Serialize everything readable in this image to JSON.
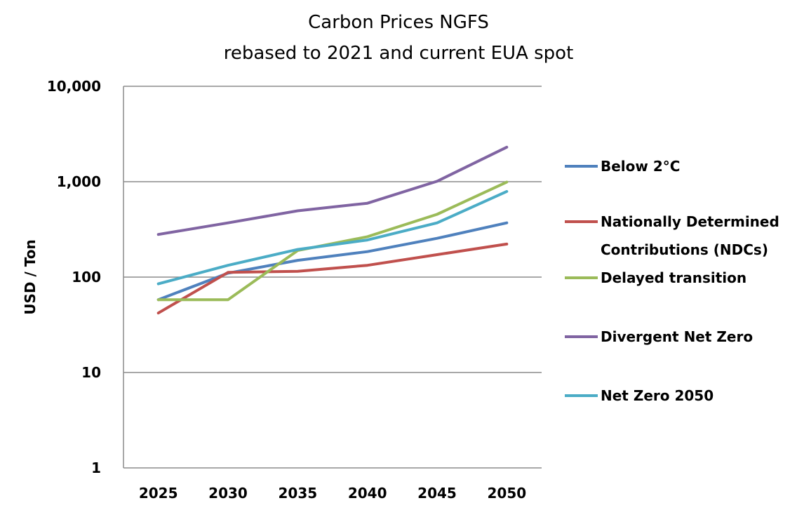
{
  "chart_data": {
    "type": "line",
    "title": [
      "Carbon Prices NGFS",
      "rebased to 2021 and current EUA spot"
    ],
    "xlabel": "",
    "ylabel": "USD / Ton",
    "yscale": "log",
    "ylim": [
      1,
      10000
    ],
    "y_ticks": [
      1,
      10,
      100,
      1000,
      10000
    ],
    "y_tick_labels": [
      "1",
      "10",
      "100",
      "1,000",
      "10,000"
    ],
    "categories": [
      "2025",
      "2030",
      "2035",
      "2040",
      "2045",
      "2050"
    ],
    "grid": true,
    "legend_position": "right",
    "series": [
      {
        "name": "Below 2°C",
        "legend_lines": [
          "Below 2°C"
        ],
        "color": "#4f81bd",
        "values": [
          58,
          110,
          150,
          185,
          255,
          370
        ]
      },
      {
        "name": "Nationally Determined Contributions (NDCs)",
        "legend_lines": [
          "Nationally Determined",
          "Contributions (NDCs)"
        ],
        "color": "#c0504d",
        "values": [
          42,
          112,
          115,
          133,
          172,
          222
        ]
      },
      {
        "name": "Delayed transition",
        "legend_lines": [
          "Delayed transition"
        ],
        "color": "#9bbb59",
        "values": [
          58,
          58,
          190,
          265,
          455,
          990
        ]
      },
      {
        "name": "Divergent Net Zero",
        "legend_lines": [
          "Divergent Net Zero"
        ],
        "color": "#8064a2",
        "values": [
          280,
          370,
          495,
          595,
          1010,
          2300
        ]
      },
      {
        "name": "Net Zero 2050",
        "legend_lines": [
          "Net Zero 2050"
        ],
        "color": "#4bacc6",
        "values": [
          85,
          133,
          195,
          245,
          370,
          790
        ]
      }
    ]
  }
}
